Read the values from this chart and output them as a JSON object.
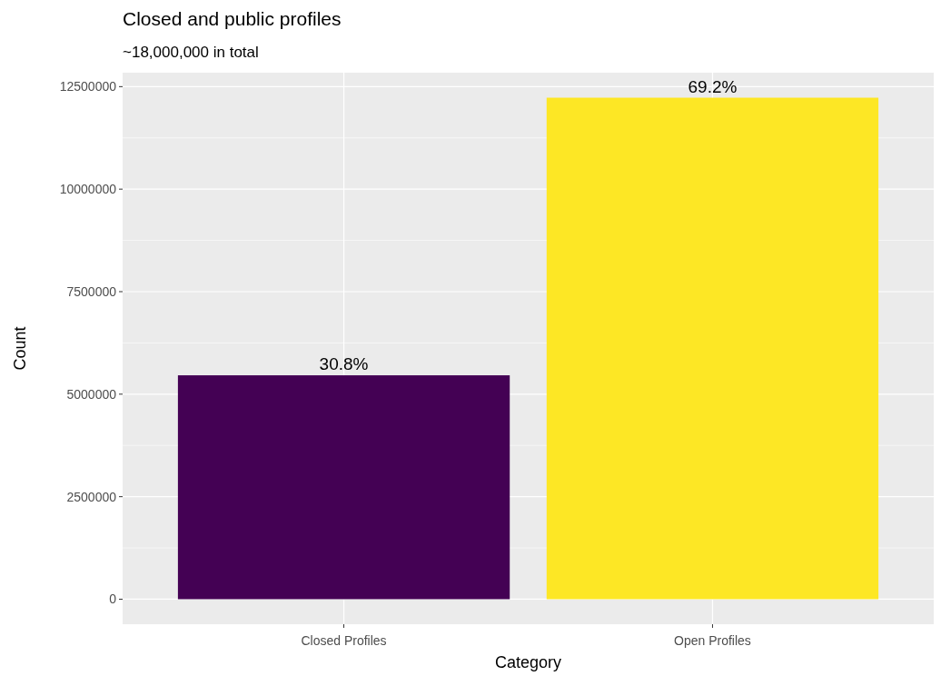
{
  "chart_data": {
    "type": "bar",
    "title": "Closed and public profiles",
    "subtitle": "~18,000,000 in total",
    "xlabel": "Category",
    "ylabel": "Count",
    "categories": [
      "Closed Profiles",
      "Open Profiles"
    ],
    "values": [
      5460000,
      12230000
    ],
    "colors": [
      "#440154",
      "#fde725"
    ],
    "annotations": [
      {
        "text": "30.8%",
        "x": "Closed Profiles",
        "y": 5460000
      },
      {
        "text": "69.2%",
        "x": "Open Profiles",
        "y": 12230000
      }
    ],
    "ylim": [
      -610000,
      12840000
    ],
    "yticks": [
      0,
      2500000,
      5000000,
      7500000,
      10000000,
      12500000
    ],
    "grid": true
  }
}
